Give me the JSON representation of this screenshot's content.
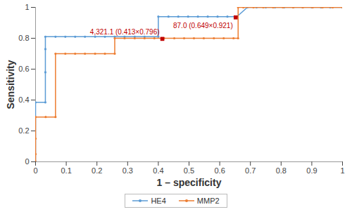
{
  "chart_data": {
    "type": "line",
    "x_label": "1 – specificity",
    "y_label": "Sensitivity",
    "xlim": [
      0,
      1
    ],
    "ylim": [
      0,
      1
    ],
    "xticks": [
      0,
      0.1,
      0.2,
      0.3,
      0.4,
      0.5,
      0.6,
      0.7,
      0.8,
      0.9,
      1
    ],
    "yticks": [
      0,
      0.2,
      0.4,
      0.6,
      0.8,
      1
    ],
    "legend": "bottom",
    "marker": "circle",
    "series": [
      {
        "name": "HE4",
        "color": "#5b9bd5",
        "x": [
          0,
          0,
          0.032,
          0.032,
          0.032,
          0.032,
          0.065,
          0.097,
          0.129,
          0.161,
          0.194,
          0.226,
          0.258,
          0.29,
          0.323,
          0.355,
          0.4,
          0.4,
          0.433,
          0.465,
          0.497,
          0.529,
          0.561,
          0.593,
          0.625,
          0.656,
          0.69,
          0.72,
          0.75,
          0.78,
          0.81,
          0.84,
          0.87,
          0.9,
          0.93,
          0.96,
          1
        ],
        "values": [
          0,
          0.385,
          0.385,
          0.58,
          0.73,
          0.81,
          0.81,
          0.81,
          0.81,
          0.81,
          0.81,
          0.81,
          0.81,
          0.81,
          0.81,
          0.81,
          0.81,
          0.94,
          0.94,
          0.94,
          0.94,
          0.94,
          0.94,
          0.94,
          0.94,
          0.94,
          1,
          1,
          1,
          1,
          1,
          1,
          1,
          1,
          1,
          1,
          1
        ]
      },
      {
        "name": "MMP2",
        "color": "#ed7d31",
        "x": [
          0,
          0,
          0,
          0,
          0.033,
          0.065,
          0.065,
          0.097,
          0.129,
          0.161,
          0.194,
          0.226,
          0.258,
          0.258,
          0.29,
          0.323,
          0.355,
          0.387,
          0.419,
          0.452,
          0.484,
          0.516,
          0.548,
          0.581,
          0.613,
          0.645,
          0.66,
          0.66,
          0.677,
          0.71,
          0.742,
          0.774,
          0.806,
          0.839,
          0.871,
          0.903,
          0.935,
          0.968,
          1
        ],
        "values": [
          0,
          0.05,
          0.15,
          0.29,
          0.29,
          0.29,
          0.7,
          0.7,
          0.7,
          0.7,
          0.7,
          0.7,
          0.7,
          0.8,
          0.8,
          0.8,
          0.8,
          0.8,
          0.8,
          0.8,
          0.8,
          0.8,
          0.8,
          0.8,
          0.8,
          0.8,
          0.8,
          1,
          1,
          1,
          1,
          1,
          1,
          1,
          1,
          1,
          1,
          1,
          1
        ]
      }
    ],
    "annotations": [
      {
        "text": "87.0 (0.649×0.921)",
        "x": 0.652,
        "y": 0.935,
        "color": "#c00000",
        "marker": "square"
      },
      {
        "text": "4,321.1 (0.413×0.796)",
        "x": 0.413,
        "y": 0.796,
        "color": "#c00000",
        "marker": "square"
      }
    ]
  }
}
